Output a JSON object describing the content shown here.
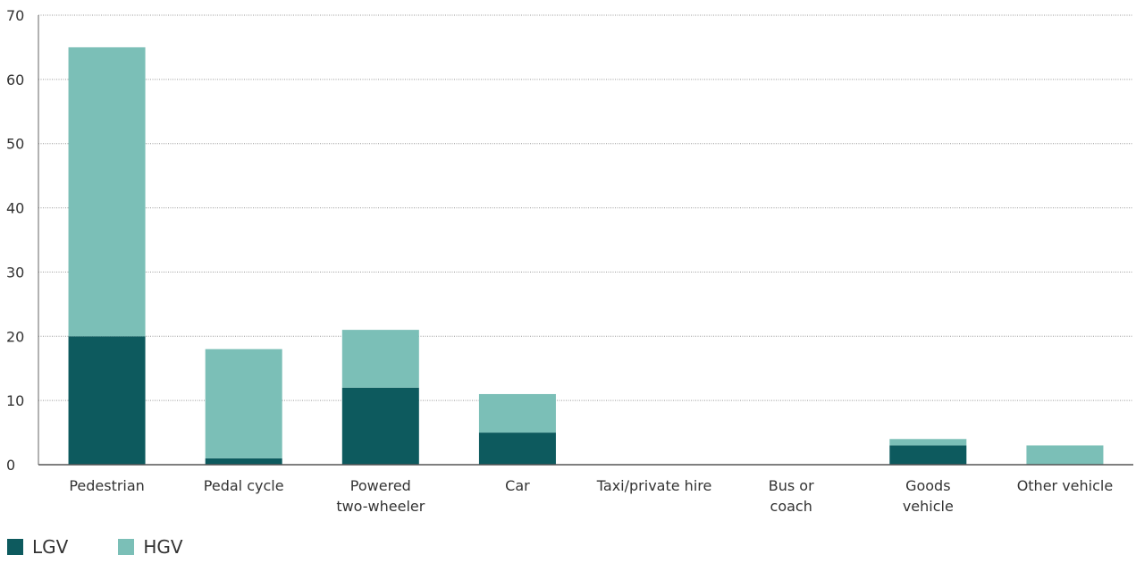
{
  "chart_data": {
    "type": "bar",
    "stacked": true,
    "categories": [
      [
        "Pedestrian"
      ],
      [
        "Pedal cycle"
      ],
      [
        "Powered",
        "two-wheeler"
      ],
      [
        "Car"
      ],
      [
        "Taxi/private hire"
      ],
      [
        "Bus or",
        "coach"
      ],
      [
        "Goods",
        "vehicle"
      ],
      [
        "Other vehicle"
      ]
    ],
    "series": [
      {
        "name": "LGV",
        "color": "#0d5a5e",
        "values": [
          20,
          1,
          12,
          5,
          0,
          0,
          3,
          0
        ]
      },
      {
        "name": "HGV",
        "color": "#7bbfb7",
        "values": [
          45,
          17,
          9,
          6,
          0,
          0,
          1,
          3
        ]
      }
    ],
    "ylim": [
      0,
      70
    ],
    "yticks": [
      0,
      10,
      20,
      30,
      40,
      50,
      60,
      70
    ],
    "grid": true,
    "legend_position": "bottom-left"
  }
}
